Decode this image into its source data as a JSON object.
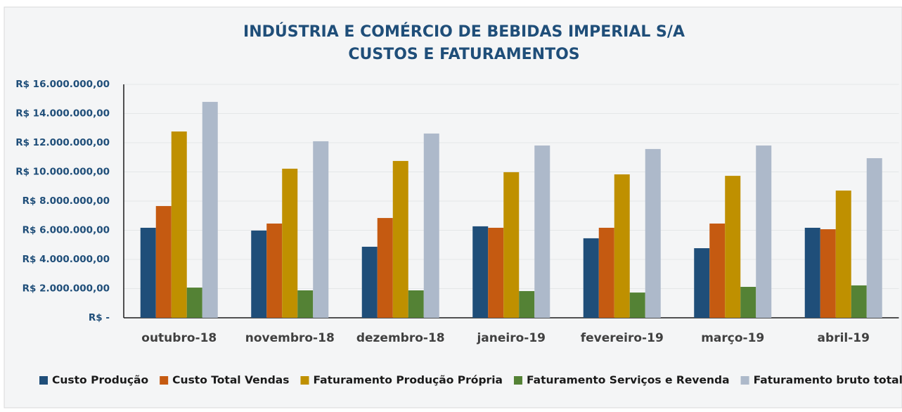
{
  "chart_data": {
    "type": "bar",
    "title": "INDÚSTRIA E COMÉRCIO DE BEBIDAS IMPERIAL S/A",
    "subtitle": "CUSTOS E FATURAMENTOS",
    "categories": [
      "outubro-18",
      "novembro-18",
      "dezembro-18",
      "janeiro-19",
      "fevereiro-19",
      "março-19",
      "abril-19"
    ],
    "series": [
      {
        "name": "Custo Produção",
        "color": "#1f4e79",
        "values": [
          6170000,
          5980000,
          4870000,
          6270000,
          5450000,
          4770000,
          6170000
        ]
      },
      {
        "name": "Custo Total Vendas",
        "color": "#c55a11",
        "values": [
          7660000,
          6460000,
          6840000,
          6170000,
          6170000,
          6460000,
          6070000
        ]
      },
      {
        "name": "Faturamento Produção Própria",
        "color": "#bf9000",
        "values": [
          12770000,
          10220000,
          10750000,
          9980000,
          9830000,
          9730000,
          8720000
        ]
      },
      {
        "name": "Faturamento Serviços e Revenda",
        "color": "#548235",
        "values": [
          2070000,
          1880000,
          1880000,
          1830000,
          1730000,
          2120000,
          2220000
        ]
      },
      {
        "name": "Faturamento bruto total",
        "color": "#adb9ca",
        "values": [
          14800000,
          12100000,
          12630000,
          11810000,
          11570000,
          11810000,
          10940000
        ]
      }
    ],
    "ylim": [
      0,
      16000000
    ],
    "yticks": [
      {
        "value": 0,
        "label": "R$ -"
      },
      {
        "value": 2000000,
        "label": "R$ 2.000.000,00"
      },
      {
        "value": 4000000,
        "label": "R$ 4.000.000,00"
      },
      {
        "value": 6000000,
        "label": "R$ 6.000.000,00"
      },
      {
        "value": 8000000,
        "label": "R$ 8.000.000,00"
      },
      {
        "value": 10000000,
        "label": "R$ 10.000.000,00"
      },
      {
        "value": 12000000,
        "label": "R$ 12.000.000,00"
      },
      {
        "value": 14000000,
        "label": "R$ 14.000.000,00"
      },
      {
        "value": 16000000,
        "label": "R$ 16.000.000,00"
      }
    ],
    "grid": true,
    "legend": "bottom"
  }
}
